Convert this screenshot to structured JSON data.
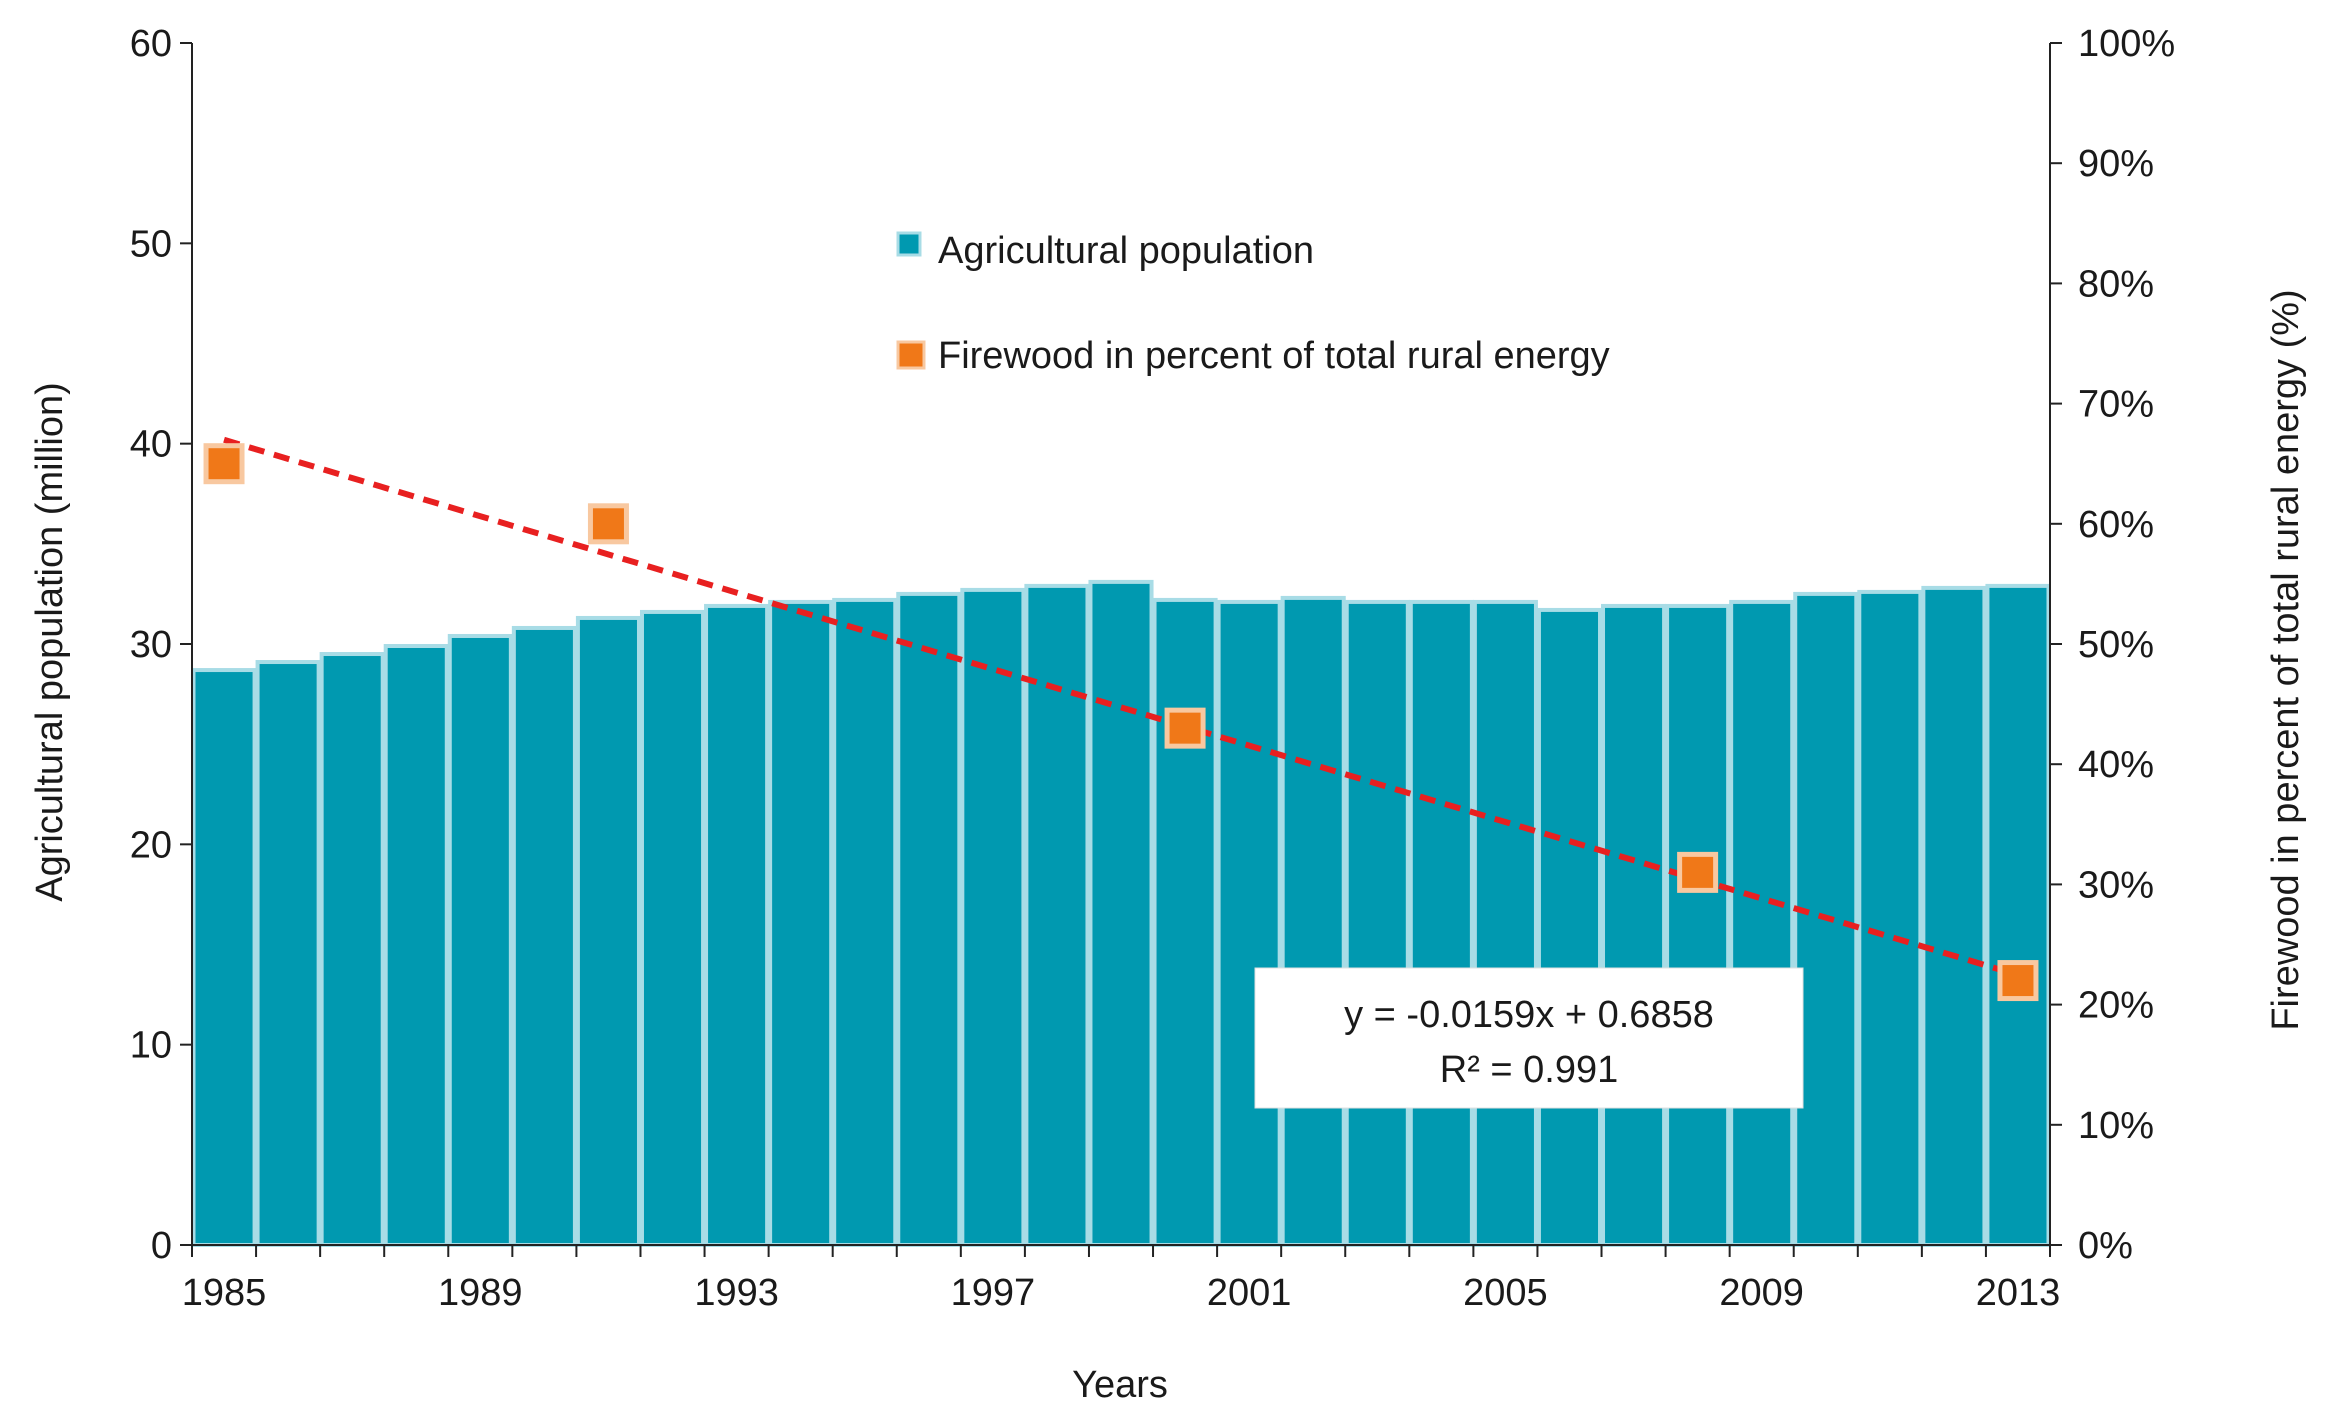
{
  "chart_data": {
    "type": "bar",
    "xlabel": "Years",
    "ylabel": "Agricultural population (million)",
    "y2label": "Firewood in percent of total rural energy (%)",
    "ylim": [
      0,
      60
    ],
    "y2lim": [
      0,
      1
    ],
    "yticks": [
      "0",
      "10",
      "20",
      "30",
      "40",
      "50",
      "60"
    ],
    "y2ticks": [
      "0%",
      "10%",
      "20%",
      "30%",
      "40%",
      "50%",
      "60%",
      "70%",
      "80%",
      "90%",
      "100%"
    ],
    "xticks": [
      "1985",
      "1989",
      "1993",
      "1997",
      "2001",
      "2005",
      "2009",
      "2013"
    ],
    "categories": [
      1985,
      1986,
      1987,
      1988,
      1989,
      1990,
      1991,
      1992,
      1993,
      1994,
      1995,
      1996,
      1997,
      1998,
      1999,
      2000,
      2001,
      2002,
      2003,
      2004,
      2005,
      2006,
      2007,
      2008,
      2009,
      2010,
      2011,
      2012,
      2013
    ],
    "series": [
      {
        "name": "Agricultural population",
        "type": "bar",
        "axis": "left",
        "color": "#0099b0",
        "edge_color": "#a8dce6",
        "values": [
          28.7,
          29.1,
          29.5,
          29.9,
          30.4,
          30.8,
          31.3,
          31.6,
          31.9,
          32.1,
          32.2,
          32.5,
          32.7,
          32.9,
          33.1,
          32.2,
          32.1,
          32.3,
          32.1,
          32.1,
          32.1,
          31.7,
          31.9,
          31.9,
          32.1,
          32.5,
          32.6,
          32.8,
          32.9
        ]
      },
      {
        "name": "Firewood in percent of total rural energy",
        "type": "scatter",
        "axis": "right",
        "color": "#f07818",
        "x": [
          1985,
          1991,
          2000,
          2008,
          2013
        ],
        "values": [
          0.65,
          0.6,
          0.43,
          0.31,
          0.22
        ]
      }
    ],
    "trendline": {
      "equation": "y = -0.0159x + 0.6858",
      "r_squared": "R² = 0.991",
      "color": "#e82020",
      "slope": -0.0159,
      "intercept": 0.6858
    },
    "legend": "upper-center"
  }
}
